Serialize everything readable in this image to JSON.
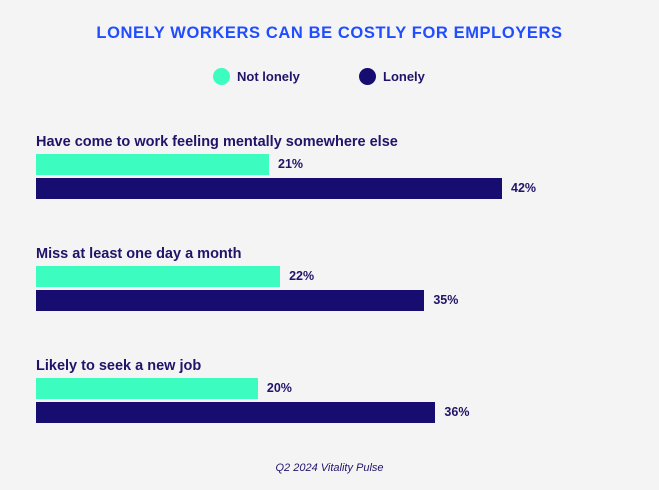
{
  "chart_data": {
    "type": "bar",
    "orientation": "horizontal",
    "title": "LONELY WORKERS CAN BE COSTLY FOR EMPLOYERS",
    "categories": [
      "Have come to work feeling mentally somewhere else",
      "Miss at least one day a month",
      "Likely to seek a new job"
    ],
    "series": [
      {
        "name": "Not lonely",
        "color": "#3dfcc0",
        "values": [
          21,
          22,
          20
        ]
      },
      {
        "name": "Lonely",
        "color": "#170d70",
        "values": [
          42,
          35,
          36
        ]
      }
    ],
    "value_suffix": "%",
    "xlim": [
      0,
      50
    ],
    "grid": false,
    "legend_position": "top-center",
    "source": "Q2 2024 Vitality Pulse"
  }
}
